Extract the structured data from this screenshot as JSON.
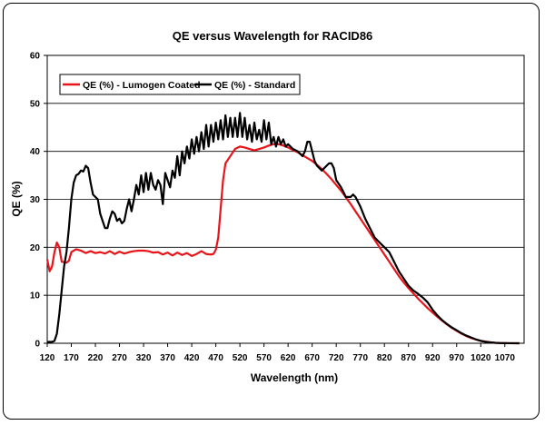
{
  "chart_data": {
    "type": "line",
    "title": "QE versus Wavelength for RACID86",
    "xlabel": "Wavelength (nm)",
    "ylabel": "QE (%)",
    "xlim": [
      120,
      1110
    ],
    "ylim": [
      0,
      60
    ],
    "yticks": [
      0,
      10,
      20,
      30,
      40,
      50,
      60
    ],
    "xticks": [
      120,
      170,
      220,
      270,
      320,
      370,
      420,
      470,
      520,
      570,
      620,
      670,
      720,
      770,
      820,
      870,
      920,
      970,
      1020,
      1070
    ],
    "grid": "horizontal",
    "legend_position": "top-left",
    "series": [
      {
        "name": "QE (%) - Lumogen Coated",
        "color": "#e8141a",
        "points": [
          [
            120,
            17.5
          ],
          [
            125,
            15
          ],
          [
            130,
            16
          ],
          [
            135,
            19
          ],
          [
            140,
            21
          ],
          [
            145,
            20
          ],
          [
            150,
            17
          ],
          [
            160,
            16.8
          ],
          [
            165,
            17.2
          ],
          [
            170,
            19
          ],
          [
            180,
            19.6
          ],
          [
            190,
            19.3
          ],
          [
            200,
            18.8
          ],
          [
            210,
            19.2
          ],
          [
            220,
            18.8
          ],
          [
            230,
            19
          ],
          [
            240,
            18.7
          ],
          [
            250,
            19.2
          ],
          [
            260,
            18.6
          ],
          [
            270,
            19.1
          ],
          [
            280,
            18.7
          ],
          [
            290,
            19
          ],
          [
            300,
            19.2
          ],
          [
            310,
            19.3
          ],
          [
            320,
            19.3
          ],
          [
            330,
            19.2
          ],
          [
            340,
            18.9
          ],
          [
            350,
            19
          ],
          [
            360,
            18.5
          ],
          [
            370,
            18.9
          ],
          [
            380,
            18.3
          ],
          [
            390,
            18.9
          ],
          [
            400,
            18.4
          ],
          [
            410,
            18.8
          ],
          [
            420,
            18.2
          ],
          [
            430,
            18.6
          ],
          [
            440,
            19.2
          ],
          [
            450,
            18.6
          ],
          [
            460,
            18.5
          ],
          [
            465,
            18.6
          ],
          [
            470,
            19.5
          ],
          [
            475,
            22
          ],
          [
            480,
            28
          ],
          [
            485,
            34
          ],
          [
            490,
            37.5
          ],
          [
            500,
            39
          ],
          [
            510,
            40.5
          ],
          [
            520,
            41
          ],
          [
            530,
            40.8
          ],
          [
            540,
            40.5
          ],
          [
            550,
            40.2
          ],
          [
            560,
            40.5
          ],
          [
            570,
            40.8
          ],
          [
            580,
            41.2
          ],
          [
            590,
            41.5
          ],
          [
            600,
            41.5
          ],
          [
            610,
            41.2
          ],
          [
            620,
            40.8
          ],
          [
            630,
            40.3
          ],
          [
            640,
            39.8
          ],
          [
            650,
            39.2
          ],
          [
            660,
            38.6
          ],
          [
            670,
            38
          ],
          [
            680,
            37.2
          ],
          [
            690,
            36.3
          ],
          [
            700,
            35.3
          ],
          [
            710,
            34.2
          ],
          [
            720,
            33
          ],
          [
            730,
            31.8
          ],
          [
            740,
            30.4
          ],
          [
            750,
            29
          ],
          [
            760,
            27.5
          ],
          [
            770,
            26
          ],
          [
            780,
            24.5
          ],
          [
            790,
            23
          ],
          [
            800,
            21.5
          ],
          [
            810,
            20
          ],
          [
            820,
            18.5
          ],
          [
            830,
            17
          ],
          [
            840,
            15.5
          ],
          [
            850,
            14
          ],
          [
            860,
            12.7
          ],
          [
            870,
            11.5
          ],
          [
            880,
            10.4
          ],
          [
            890,
            9.3
          ],
          [
            900,
            8.3
          ],
          [
            910,
            7.3
          ],
          [
            920,
            6.4
          ],
          [
            930,
            5.5
          ],
          [
            940,
            4.7
          ],
          [
            950,
            3.9
          ],
          [
            960,
            3.2
          ],
          [
            970,
            2.6
          ],
          [
            980,
            2
          ],
          [
            990,
            1.5
          ],
          [
            1000,
            1.1
          ],
          [
            1010,
            0.8
          ],
          [
            1020,
            0.5
          ],
          [
            1030,
            0.35
          ],
          [
            1040,
            0.2
          ],
          [
            1050,
            0.1
          ],
          [
            1060,
            0.05
          ],
          [
            1070,
            0.02
          ],
          [
            1080,
            0.01
          ],
          [
            1100,
            0
          ]
        ]
      },
      {
        "name": "QE (%) - Standard",
        "color": "#000000",
        "points": [
          [
            120,
            0.3
          ],
          [
            130,
            0.3
          ],
          [
            135,
            0.5
          ],
          [
            140,
            2
          ],
          [
            145,
            6
          ],
          [
            150,
            11
          ],
          [
            155,
            16
          ],
          [
            160,
            19
          ],
          [
            165,
            24
          ],
          [
            170,
            30
          ],
          [
            175,
            33.5
          ],
          [
            180,
            35
          ],
          [
            185,
            35.3
          ],
          [
            190,
            36
          ],
          [
            195,
            35.8
          ],
          [
            200,
            37
          ],
          [
            205,
            36.5
          ],
          [
            210,
            33.5
          ],
          [
            215,
            31
          ],
          [
            220,
            30.5
          ],
          [
            225,
            30
          ],
          [
            230,
            27
          ],
          [
            235,
            25.5
          ],
          [
            240,
            24
          ],
          [
            245,
            24
          ],
          [
            250,
            26
          ],
          [
            255,
            27.5
          ],
          [
            260,
            27
          ],
          [
            265,
            25.5
          ],
          [
            270,
            26
          ],
          [
            275,
            25
          ],
          [
            280,
            25.5
          ],
          [
            285,
            28
          ],
          [
            290,
            30
          ],
          [
            295,
            27.5
          ],
          [
            300,
            30
          ],
          [
            305,
            33
          ],
          [
            310,
            31
          ],
          [
            315,
            35
          ],
          [
            320,
            31.5
          ],
          [
            325,
            35.5
          ],
          [
            330,
            32
          ],
          [
            335,
            35.5
          ],
          [
            340,
            33
          ],
          [
            345,
            32
          ],
          [
            350,
            34
          ],
          [
            355,
            33
          ],
          [
            360,
            29
          ],
          [
            365,
            35.5
          ],
          [
            370,
            34
          ],
          [
            375,
            32.5
          ],
          [
            380,
            36
          ],
          [
            385,
            34.5
          ],
          [
            390,
            39
          ],
          [
            395,
            35
          ],
          [
            400,
            40
          ],
          [
            405,
            37.5
          ],
          [
            410,
            41
          ],
          [
            415,
            38.5
          ],
          [
            420,
            42.5
          ],
          [
            425,
            39.5
          ],
          [
            430,
            43
          ],
          [
            435,
            40
          ],
          [
            440,
            44
          ],
          [
            445,
            40.5
          ],
          [
            450,
            45.5
          ],
          [
            455,
            41
          ],
          [
            460,
            45.5
          ],
          [
            465,
            42
          ],
          [
            470,
            46
          ],
          [
            475,
            42.5
          ],
          [
            480,
            46.5
          ],
          [
            485,
            42.5
          ],
          [
            490,
            47.5
          ],
          [
            495,
            43
          ],
          [
            500,
            47
          ],
          [
            505,
            43
          ],
          [
            510,
            47
          ],
          [
            515,
            43
          ],
          [
            520,
            48
          ],
          [
            525,
            43
          ],
          [
            530,
            47
          ],
          [
            535,
            42.5
          ],
          [
            540,
            45.5
          ],
          [
            545,
            42
          ],
          [
            550,
            46
          ],
          [
            555,
            42.5
          ],
          [
            560,
            44.5
          ],
          [
            565,
            42
          ],
          [
            570,
            46.5
          ],
          [
            575,
            42.5
          ],
          [
            580,
            46
          ],
          [
            585,
            41.5
          ],
          [
            590,
            43
          ],
          [
            595,
            41
          ],
          [
            600,
            43
          ],
          [
            605,
            41.5
          ],
          [
            610,
            42.5
          ],
          [
            615,
            41
          ],
          [
            620,
            41.5
          ],
          [
            630,
            40.5
          ],
          [
            640,
            40
          ],
          [
            650,
            39
          ],
          [
            655,
            40
          ],
          [
            660,
            42
          ],
          [
            665,
            42
          ],
          [
            670,
            40
          ],
          [
            675,
            38
          ],
          [
            680,
            37
          ],
          [
            690,
            36
          ],
          [
            700,
            37
          ],
          [
            705,
            37.5
          ],
          [
            710,
            37.5
          ],
          [
            715,
            36.5
          ],
          [
            720,
            34
          ],
          [
            730,
            32.5
          ],
          [
            740,
            30.5
          ],
          [
            750,
            30.5
          ],
          [
            755,
            31
          ],
          [
            760,
            30.5
          ],
          [
            770,
            28.5
          ],
          [
            780,
            26
          ],
          [
            790,
            24
          ],
          [
            800,
            22
          ],
          [
            810,
            21
          ],
          [
            820,
            20
          ],
          [
            830,
            19
          ],
          [
            840,
            17
          ],
          [
            850,
            15
          ],
          [
            860,
            13.5
          ],
          [
            870,
            12
          ],
          [
            880,
            11
          ],
          [
            890,
            10.3
          ],
          [
            900,
            9.5
          ],
          [
            910,
            8.5
          ],
          [
            920,
            7
          ],
          [
            930,
            5.8
          ],
          [
            940,
            4.8
          ],
          [
            950,
            4
          ],
          [
            960,
            3.3
          ],
          [
            970,
            2.7
          ],
          [
            980,
            2.1
          ],
          [
            990,
            1.6
          ],
          [
            1000,
            1.2
          ],
          [
            1010,
            0.8
          ],
          [
            1020,
            0.5
          ],
          [
            1030,
            0.3
          ],
          [
            1040,
            0.2
          ],
          [
            1050,
            0.1
          ],
          [
            1060,
            0.05
          ],
          [
            1070,
            0.02
          ],
          [
            1080,
            0.01
          ],
          [
            1100,
            0
          ]
        ]
      }
    ]
  }
}
